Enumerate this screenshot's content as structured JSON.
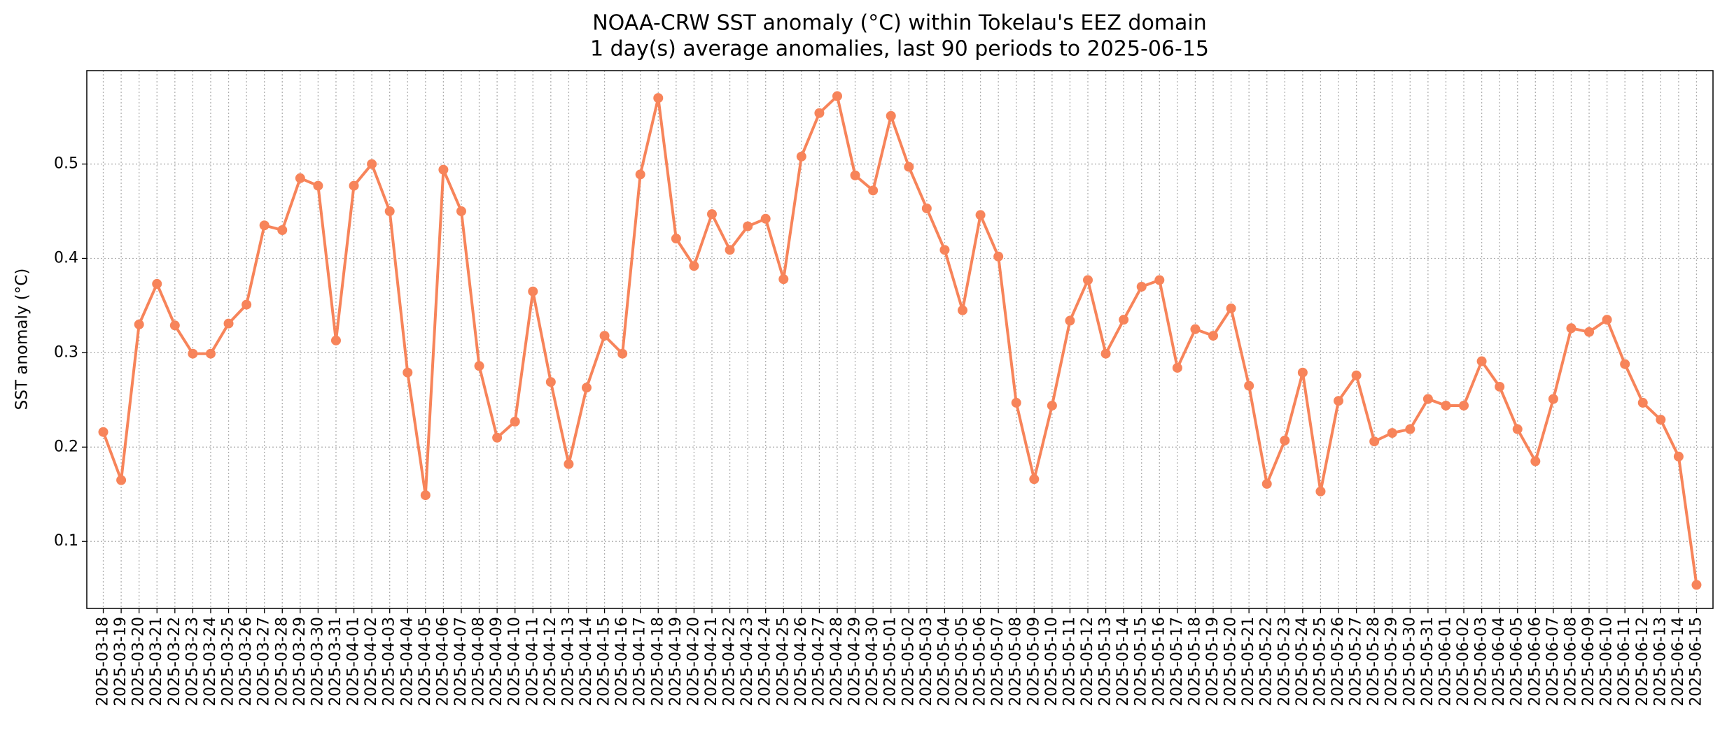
{
  "chart_data": {
    "type": "line",
    "title": "NOAA-CRW SST anomaly (°C) within Tokelau's EEZ domain",
    "subtitle": "1 day(s) average anomalies, last 90 periods to 2025-06-15",
    "ylabel": "SST anomaly (°C)",
    "color": "#f7845a",
    "grid": true,
    "ylim": [
      0.029,
      0.599
    ],
    "yticks": [
      0.1,
      0.2,
      0.3,
      0.4,
      0.5
    ],
    "categories": [
      "2025-03-18",
      "2025-03-19",
      "2025-03-20",
      "2025-03-21",
      "2025-03-22",
      "2025-03-23",
      "2025-03-24",
      "2025-03-25",
      "2025-03-26",
      "2025-03-27",
      "2025-03-28",
      "2025-03-29",
      "2025-03-30",
      "2025-03-31",
      "2025-04-01",
      "2025-04-02",
      "2025-04-03",
      "2025-04-04",
      "2025-04-05",
      "2025-04-06",
      "2025-04-07",
      "2025-04-08",
      "2025-04-09",
      "2025-04-10",
      "2025-04-11",
      "2025-04-12",
      "2025-04-13",
      "2025-04-14",
      "2025-04-15",
      "2025-04-16",
      "2025-04-17",
      "2025-04-18",
      "2025-04-19",
      "2025-04-20",
      "2025-04-21",
      "2025-04-22",
      "2025-04-23",
      "2025-04-24",
      "2025-04-25",
      "2025-04-26",
      "2025-04-27",
      "2025-04-28",
      "2025-04-29",
      "2025-04-30",
      "2025-05-01",
      "2025-05-02",
      "2025-05-03",
      "2025-05-04",
      "2025-05-05",
      "2025-05-06",
      "2025-05-07",
      "2025-05-08",
      "2025-05-09",
      "2025-05-10",
      "2025-05-11",
      "2025-05-12",
      "2025-05-13",
      "2025-05-14",
      "2025-05-15",
      "2025-05-16",
      "2025-05-17",
      "2025-05-18",
      "2025-05-19",
      "2025-05-20",
      "2025-05-21",
      "2025-05-22",
      "2025-05-23",
      "2025-05-24",
      "2025-05-25",
      "2025-05-26",
      "2025-05-27",
      "2025-05-28",
      "2025-05-29",
      "2025-05-30",
      "2025-05-31",
      "2025-06-01",
      "2025-06-02",
      "2025-06-03",
      "2025-06-04",
      "2025-06-05",
      "2025-06-06",
      "2025-06-07",
      "2025-06-08",
      "2025-06-09",
      "2025-06-10",
      "2025-06-11",
      "2025-06-12",
      "2025-06-13",
      "2025-06-14",
      "2025-06-15"
    ],
    "values": [
      0.216,
      0.165,
      0.33,
      0.373,
      0.329,
      0.299,
      0.299,
      0.331,
      0.351,
      0.435,
      0.43,
      0.485,
      0.477,
      0.313,
      0.477,
      0.5,
      0.45,
      0.279,
      0.149,
      0.494,
      0.45,
      0.286,
      0.21,
      0.227,
      0.365,
      0.269,
      0.182,
      0.263,
      0.318,
      0.299,
      0.489,
      0.57,
      0.421,
      0.392,
      0.447,
      0.409,
      0.434,
      0.442,
      0.378,
      0.508,
      0.554,
      0.572,
      0.488,
      0.472,
      0.551,
      0.497,
      0.453,
      0.409,
      0.345,
      0.446,
      0.402,
      0.247,
      0.166,
      0.244,
      0.334,
      0.377,
      0.299,
      0.335,
      0.37,
      0.377,
      0.284,
      0.325,
      0.318,
      0.347,
      0.265,
      0.161,
      0.207,
      0.279,
      0.153,
      0.249,
      0.276,
      0.206,
      0.215,
      0.219,
      0.251,
      0.244,
      0.244,
      0.291,
      0.264,
      0.219,
      0.185,
      0.251,
      0.326,
      0.322,
      0.335,
      0.288,
      0.247,
      0.229,
      0.19,
      0.054
    ]
  }
}
